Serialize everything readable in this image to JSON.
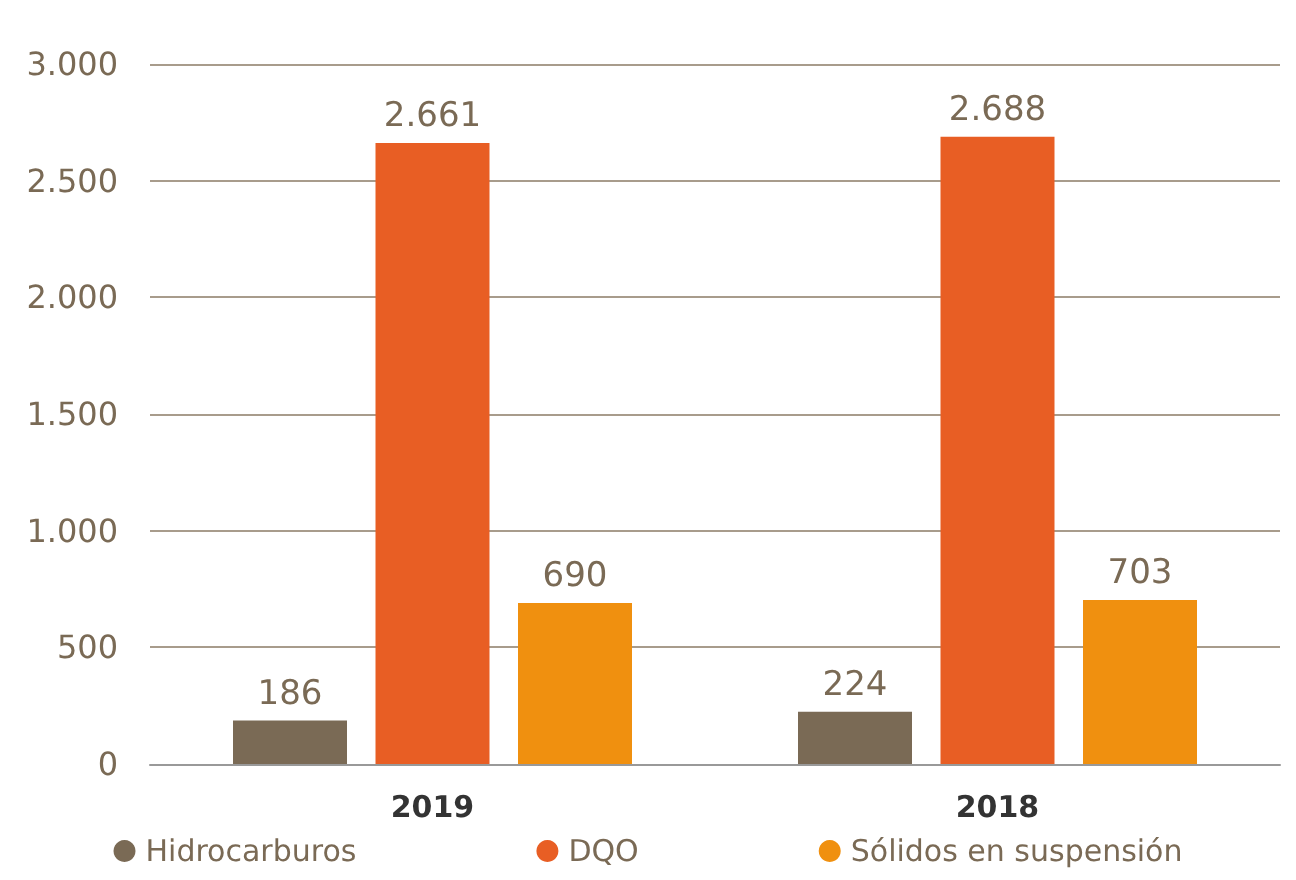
{
  "chart_data": {
    "type": "bar",
    "categories": [
      "2019",
      "2018"
    ],
    "series": [
      {
        "name": "Hidrocarburos",
        "color": "#7a6a55",
        "values": [
          186,
          224
        ],
        "value_labels": [
          "186",
          "224"
        ]
      },
      {
        "name": "DQO",
        "color": "#e85e24",
        "values": [
          2661,
          2688
        ],
        "value_labels": [
          "2.661",
          "2.688"
        ]
      },
      {
        "name": "Sólidos en suspensión",
        "color": "#f0900f",
        "values": [
          690,
          703
        ],
        "value_labels": [
          "690",
          "703"
        ]
      }
    ],
    "ylim": [
      0,
      3000
    ],
    "yticks": [
      0,
      500,
      {
        "value": 1000,
        "label": "1.000"
      },
      {
        "value": 1500,
        "label": "1.500"
      },
      {
        "value": 2000,
        "label": "2.000"
      },
      {
        "value": 2500,
        "label": "2.500"
      },
      {
        "value": 3000,
        "label": "3.000"
      }
    ],
    "grid": "y",
    "legend": "bottom"
  }
}
